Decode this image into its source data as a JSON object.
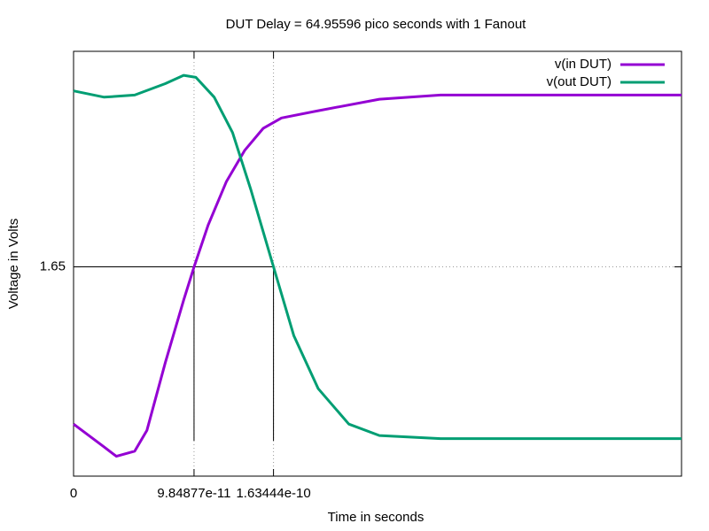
{
  "chart_data": {
    "type": "line",
    "title": "DUT Delay = 64.95596 pico seconds with 1 Fanout",
    "x_label": "Time in seconds",
    "y_label": "Voltage in Volts",
    "xlim": [
      0,
      4.97e-10
    ],
    "ylim": [
      -0.36,
      3.72
    ],
    "xticks": [
      0,
      9.84877e-11,
      1.63444e-10
    ],
    "yticks": [
      1.65
    ],
    "grid": true,
    "legend": "top-right",
    "series": [
      {
        "name": "v(in DUT)",
        "color": "#9400d3",
        "x": [
          0,
          2.5e-11,
          3.5e-11,
          5e-11,
          6e-11,
          7.5e-11,
          9e-11,
          9.85e-11,
          1.1e-10,
          1.25e-10,
          1.4e-10,
          1.55e-10,
          1.7e-10,
          2e-10,
          2.5e-10,
          3e-10,
          4.97e-10
        ],
        "values": [
          0.14,
          -0.08,
          -0.17,
          -0.12,
          0.08,
          0.73,
          1.33,
          1.65,
          2.05,
          2.47,
          2.77,
          2.98,
          3.08,
          3.15,
          3.26,
          3.3,
          3.3
        ]
      },
      {
        "name": "v(out DUT)",
        "color": "#009e73",
        "x": [
          0,
          2.5e-11,
          5e-11,
          7.5e-11,
          9e-11,
          1e-10,
          1.15e-10,
          1.3e-10,
          1.45e-10,
          1.6344e-10,
          1.8e-10,
          2e-10,
          2.25e-10,
          2.5e-10,
          3e-10,
          4.97e-10
        ],
        "values": [
          3.34,
          3.28,
          3.3,
          3.41,
          3.49,
          3.47,
          3.28,
          2.94,
          2.39,
          1.65,
          0.99,
          0.48,
          0.14,
          0.03,
          0,
          0
        ]
      }
    ]
  }
}
